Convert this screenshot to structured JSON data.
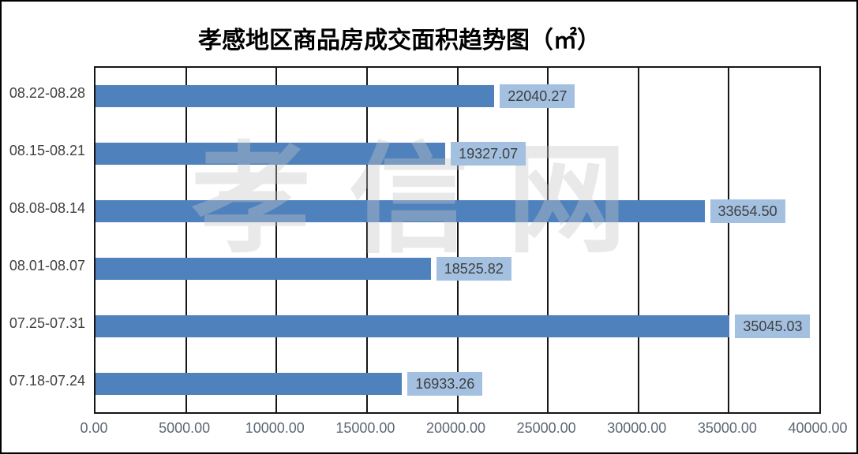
{
  "chart_data": {
    "type": "bar",
    "orientation": "horizontal",
    "title": "孝感地区商品房成交面积趋势图（㎡）",
    "watermark": "孝信网",
    "categories": [
      "08.22-08.28",
      "08.15-08.21",
      "08.08-08.14",
      "08.01-08.07",
      "07.25-07.31",
      "07.18-07.24"
    ],
    "values": [
      22040.27,
      19327.07,
      33654.5,
      18525.82,
      35045.03,
      16933.26
    ],
    "value_labels": [
      "22040.27",
      "19327.07",
      "33654.50",
      "18525.82",
      "35045.03",
      "16933.26"
    ],
    "x_ticks": [
      "0.00",
      "5000.00",
      "10000.00",
      "15000.00",
      "20000.00",
      "25000.00",
      "30000.00",
      "35000.00",
      "40000.00"
    ],
    "xlim": [
      0,
      40000
    ],
    "grid": "vertical",
    "legend": "none",
    "colors": {
      "bar_fill": "#4F81BD",
      "value_label_fill": "#A3C0E0",
      "value_label_text": "#3F3F3F",
      "axis_text": "#5D6874",
      "category_text": "#404040",
      "grid_line": "#161616",
      "watermark_text": "#C6C6C6"
    }
  }
}
